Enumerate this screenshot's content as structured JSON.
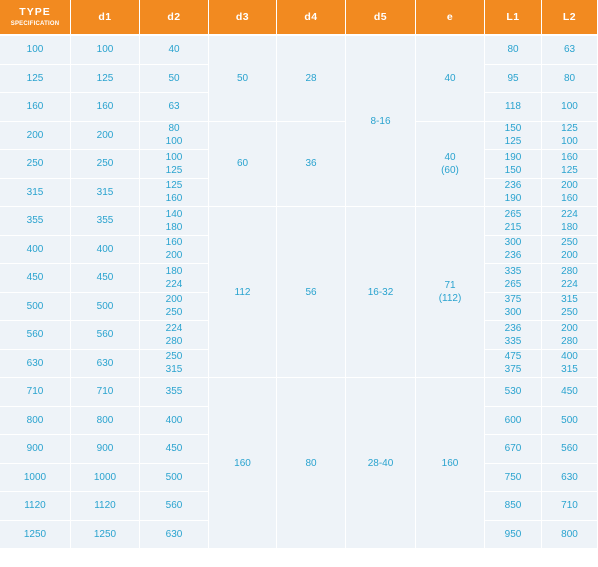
{
  "header": {
    "type_label": "TYPE",
    "type_sub": "SPECIFICATION",
    "columns": [
      "d1",
      "d2",
      "d3",
      "d4",
      "d5",
      "e",
      "L1",
      "L2"
    ]
  },
  "rows": [
    {
      "type": "100",
      "d1": "100",
      "d2": [
        "40"
      ],
      "L1": [
        "80"
      ],
      "L2": [
        "63"
      ]
    },
    {
      "type": "125",
      "d1": "125",
      "d2": [
        "50"
      ],
      "L1": [
        "95"
      ],
      "L2": [
        "80"
      ]
    },
    {
      "type": "160",
      "d1": "160",
      "d2": [
        "63"
      ],
      "L1": [
        "118"
      ],
      "L2": [
        "100"
      ]
    },
    {
      "type": "200",
      "d1": "200",
      "d2": [
        "80",
        "100"
      ],
      "L1": [
        "150",
        "125"
      ],
      "L2": [
        "125",
        "100"
      ]
    },
    {
      "type": "250",
      "d1": "250",
      "d2": [
        "100",
        "125"
      ],
      "L1": [
        "190",
        "150"
      ],
      "L2": [
        "160",
        "125"
      ]
    },
    {
      "type": "315",
      "d1": "315",
      "d2": [
        "125",
        "160"
      ],
      "L1": [
        "236",
        "190"
      ],
      "L2": [
        "200",
        "160"
      ]
    },
    {
      "type": "355",
      "d1": "355",
      "d2": [
        "140",
        "180"
      ],
      "L1": [
        "265",
        "215"
      ],
      "L2": [
        "224",
        "180"
      ]
    },
    {
      "type": "400",
      "d1": "400",
      "d2": [
        "160",
        "200"
      ],
      "L1": [
        "300",
        "236"
      ],
      "L2": [
        "250",
        "200"
      ]
    },
    {
      "type": "450",
      "d1": "450",
      "d2": [
        "180",
        "224"
      ],
      "L1": [
        "335",
        "265"
      ],
      "L2": [
        "280",
        "224"
      ]
    },
    {
      "type": "500",
      "d1": "500",
      "d2": [
        "200",
        "250"
      ],
      "L1": [
        "375",
        "300"
      ],
      "L2": [
        "315",
        "250"
      ]
    },
    {
      "type": "560",
      "d1": "560",
      "d2": [
        "224",
        "280"
      ],
      "L1": [
        "236",
        "335"
      ],
      "L2": [
        "200",
        "280"
      ]
    },
    {
      "type": "630",
      "d1": "630",
      "d2": [
        "250",
        "315"
      ],
      "L1": [
        "475",
        "375"
      ],
      "L2": [
        "400",
        "315"
      ]
    },
    {
      "type": "710",
      "d1": "710",
      "d2": [
        "355"
      ],
      "L1": [
        "530"
      ],
      "L2": [
        "450"
      ]
    },
    {
      "type": "800",
      "d1": "800",
      "d2": [
        "400"
      ],
      "L1": [
        "600"
      ],
      "L2": [
        "500"
      ]
    },
    {
      "type": "900",
      "d1": "900",
      "d2": [
        "450"
      ],
      "L1": [
        "670"
      ],
      "L2": [
        "560"
      ]
    },
    {
      "type": "1000",
      "d1": "1000",
      "d2": [
        "500"
      ],
      "L1": [
        "750"
      ],
      "L2": [
        "630"
      ]
    },
    {
      "type": "1120",
      "d1": "1120",
      "d2": [
        "560"
      ],
      "L1": [
        "850"
      ],
      "L2": [
        "710"
      ]
    },
    {
      "type": "1250",
      "d1": "1250",
      "d2": [
        "630"
      ],
      "L1": [
        "950"
      ],
      "L2": [
        "800"
      ]
    }
  ],
  "merged": {
    "d3": [
      {
        "start": 0,
        "span": 3,
        "lines": [
          "50"
        ]
      },
      {
        "start": 3,
        "span": 3,
        "lines": [
          "60"
        ]
      },
      {
        "start": 6,
        "span": 6,
        "lines": [
          "112"
        ]
      },
      {
        "start": 12,
        "span": 6,
        "lines": [
          "160"
        ]
      }
    ],
    "d4": [
      {
        "start": 0,
        "span": 3,
        "lines": [
          "28"
        ]
      },
      {
        "start": 3,
        "span": 3,
        "lines": [
          "36"
        ]
      },
      {
        "start": 6,
        "span": 6,
        "lines": [
          "56"
        ]
      },
      {
        "start": 12,
        "span": 6,
        "lines": [
          "80"
        ]
      }
    ],
    "d5": [
      {
        "start": 0,
        "span": 6,
        "lines": [
          "8-16"
        ]
      },
      {
        "start": 6,
        "span": 6,
        "lines": [
          "16-32"
        ]
      },
      {
        "start": 12,
        "span": 6,
        "lines": [
          "28-40"
        ]
      }
    ],
    "e": [
      {
        "start": 0,
        "span": 3,
        "lines": [
          "40"
        ]
      },
      {
        "start": 3,
        "span": 3,
        "lines": [
          "40",
          "(60)"
        ]
      },
      {
        "start": 6,
        "span": 6,
        "lines": [
          "71",
          "(112)"
        ]
      },
      {
        "start": 12,
        "span": 6,
        "lines": [
          "160"
        ]
      }
    ]
  },
  "colors": {
    "header_bg": "#f28a20",
    "header_text": "#ffffff",
    "cell_text": "#2aa3cf",
    "cell_bg_light": "#eaf1f7",
    "cell_bg_dark": "#dce8f1"
  }
}
